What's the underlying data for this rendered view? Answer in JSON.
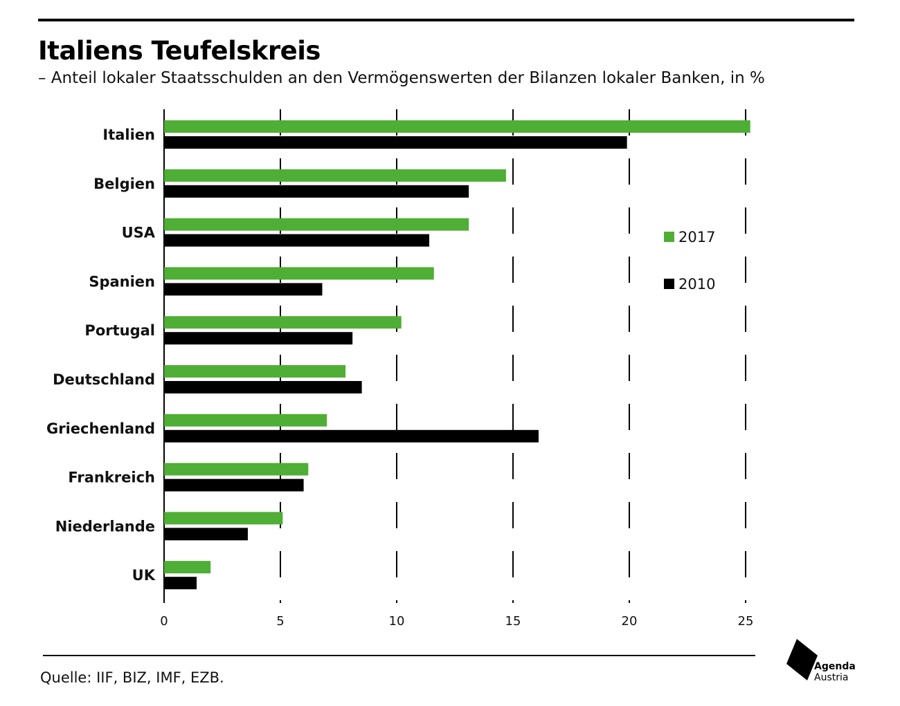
{
  "header": {
    "title": "Italiens Teufelskreis",
    "subtitle": "– Anteil lokaler Staatsschulden an den Vermögenswerten der Bilanzen lokaler Banken, in %"
  },
  "footer": {
    "source": "Quelle: IIF, BIZ, IMF, EZB.",
    "logo_line1": "Agenda",
    "logo_line2": "Austria"
  },
  "colors": {
    "series_2017": "#4fae35",
    "series_2010": "#000000",
    "grid": "#000000"
  },
  "chart_data": {
    "type": "bar",
    "orientation": "horizontal",
    "title": "Italiens Teufelskreis",
    "subtitle": "– Anteil lokaler Staatsschulden an den Vermögenswerten der Bilanzen lokaler Banken, in %",
    "categories": [
      "Italien",
      "Belgien",
      "USA",
      "Spanien",
      "Portugal",
      "Deutschland",
      "Griechenland",
      "Frankreich",
      "Niederlande",
      "UK"
    ],
    "series": [
      {
        "name": "2017",
        "color": "#4fae35",
        "values": [
          25.2,
          14.7,
          13.1,
          11.6,
          10.2,
          7.8,
          7.0,
          6.2,
          5.1,
          2.0
        ]
      },
      {
        "name": "2010",
        "color": "#000000",
        "values": [
          19.9,
          13.1,
          11.4,
          6.8,
          8.1,
          8.5,
          16.1,
          6.0,
          3.6,
          1.4
        ]
      }
    ],
    "xlim": [
      0,
      25
    ],
    "xticks": [
      "0",
      "5",
      "10",
      "15",
      "20",
      "25"
    ],
    "grid": "vertical dashed",
    "legend": "right"
  }
}
